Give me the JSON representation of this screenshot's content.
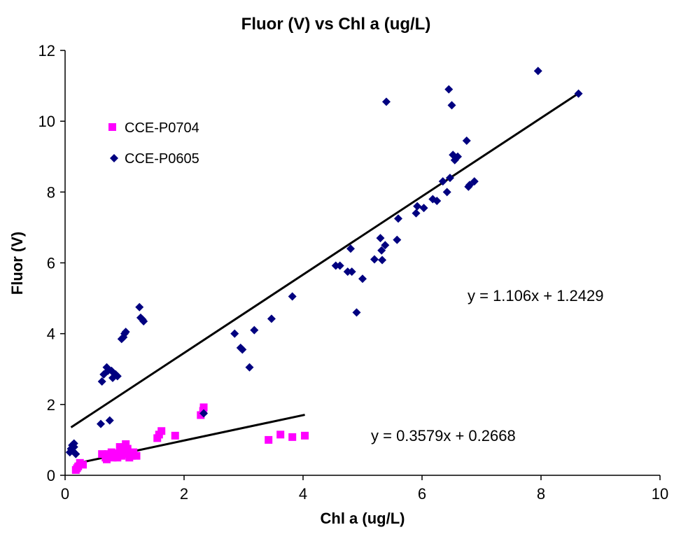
{
  "chart_data": {
    "type": "scatter",
    "title": "Fluor (V) vs Chl a (ug/L)",
    "xlabel": "Chl a (ug/L)",
    "ylabel": "Fluor (V)",
    "xlim": [
      0,
      10
    ],
    "ylim": [
      0,
      12
    ],
    "xticks": [
      0,
      2,
      4,
      6,
      8,
      10
    ],
    "yticks": [
      0,
      2,
      4,
      6,
      8,
      10,
      12
    ],
    "grid": false,
    "legend_position": "upper-left",
    "series": [
      {
        "name": "CCE-P0704",
        "marker": "square",
        "color": "#ff00ff",
        "x": [
          0.18,
          0.2,
          0.22,
          0.25,
          0.3,
          0.62,
          0.68,
          0.7,
          0.72,
          0.75,
          0.78,
          0.8,
          0.82,
          0.85,
          0.88,
          0.9,
          0.92,
          0.95,
          0.97,
          1.0,
          1.02,
          1.05,
          1.08,
          1.1,
          1.12,
          1.15,
          1.2,
          1.55,
          1.58,
          1.62,
          1.85,
          2.28,
          2.32,
          2.33,
          3.42,
          3.62,
          3.82,
          4.03
        ],
        "y": [
          0.15,
          0.2,
          0.25,
          0.35,
          0.3,
          0.6,
          0.5,
          0.45,
          0.6,
          0.55,
          0.65,
          0.5,
          0.6,
          0.55,
          0.5,
          0.62,
          0.8,
          0.55,
          0.7,
          0.6,
          0.88,
          0.75,
          0.5,
          0.6,
          0.55,
          0.65,
          0.55,
          1.05,
          1.15,
          1.25,
          1.12,
          1.7,
          1.82,
          1.92,
          1.0,
          1.15,
          1.08,
          1.12
        ]
      },
      {
        "name": "CCE-P0605",
        "marker": "diamond",
        "color": "#000080",
        "x": [
          0.08,
          0.1,
          0.12,
          0.12,
          0.15,
          0.15,
          0.18,
          0.6,
          0.62,
          0.65,
          0.7,
          0.72,
          0.75,
          0.78,
          0.8,
          0.85,
          0.88,
          0.95,
          0.98,
          1.0,
          1.02,
          1.25,
          1.27,
          1.3,
          1.32,
          2.33,
          2.85,
          2.95,
          2.98,
          3.1,
          3.18,
          3.47,
          3.82,
          4.55,
          4.62,
          4.75,
          4.8,
          4.82,
          4.9,
          5.0,
          5.2,
          5.3,
          5.32,
          5.33,
          5.38,
          5.4,
          5.58,
          5.6,
          5.9,
          5.92,
          6.03,
          6.18,
          6.25,
          6.35,
          6.42,
          6.45,
          6.47,
          6.5,
          6.52,
          6.55,
          6.6,
          6.75,
          6.78,
          6.8,
          6.88,
          7.95,
          8.63
        ],
        "y": [
          0.65,
          0.75,
          0.7,
          0.85,
          0.8,
          0.9,
          0.6,
          1.45,
          2.65,
          2.85,
          3.05,
          2.95,
          1.55,
          2.95,
          2.75,
          2.85,
          2.8,
          3.85,
          3.9,
          4.0,
          4.05,
          4.75,
          4.45,
          4.4,
          4.35,
          1.75,
          4.0,
          3.6,
          3.55,
          3.05,
          4.1,
          4.42,
          5.05,
          5.92,
          5.92,
          5.75,
          6.4,
          5.75,
          4.6,
          5.55,
          6.1,
          6.7,
          6.35,
          6.08,
          6.5,
          10.55,
          6.65,
          7.25,
          7.4,
          7.6,
          7.55,
          7.8,
          7.75,
          8.3,
          8.0,
          10.9,
          8.4,
          10.45,
          9.05,
          8.9,
          9.0,
          9.45,
          8.15,
          8.2,
          8.3,
          11.42,
          10.78
        ]
      }
    ],
    "trendlines": [
      {
        "series": "CCE-P0605",
        "slope": 1.106,
        "intercept": 1.2429,
        "x_range": [
          0.1,
          8.63
        ],
        "equation": "y = 1.106x + 1.2429"
      },
      {
        "series": "CCE-P0704",
        "slope": 0.3579,
        "intercept": 0.2668,
        "x_range": [
          0.18,
          4.03
        ],
        "equation": "y = 0.3579x + 0.2668"
      }
    ]
  }
}
